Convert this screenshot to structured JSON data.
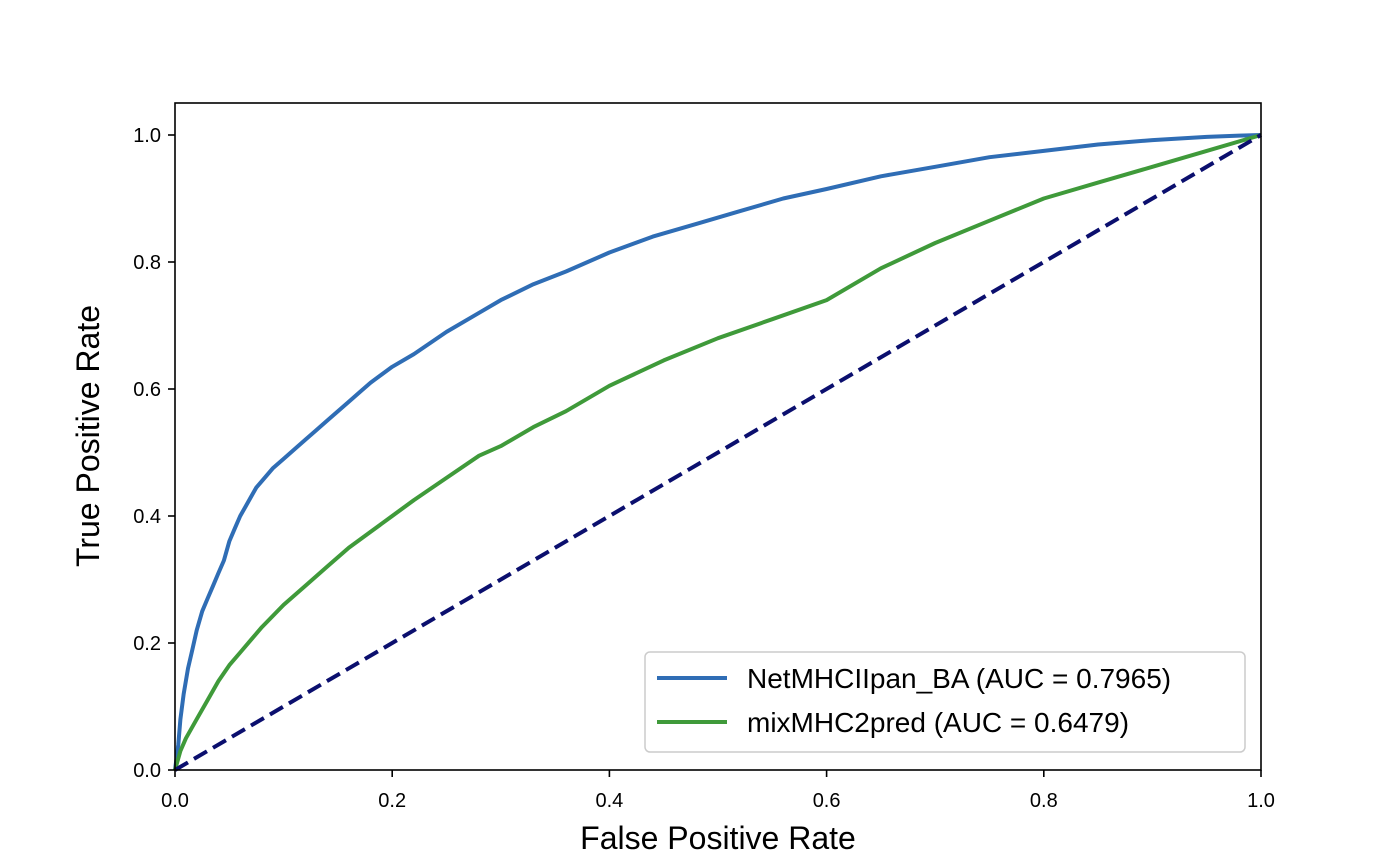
{
  "chart_data": {
    "type": "line",
    "title": "",
    "xlabel": "False Positive Rate",
    "ylabel": "True Positive Rate",
    "xlim": [
      0.0,
      1.0
    ],
    "ylim": [
      0.0,
      1.05
    ],
    "xticks": [
      "0.0",
      "0.2",
      "0.4",
      "0.6",
      "0.8",
      "1.0"
    ],
    "yticks": [
      "0.0",
      "0.2",
      "0.4",
      "0.6",
      "0.8",
      "1.0"
    ],
    "grid": false,
    "legend_position": "lower-right",
    "series": [
      {
        "name": "NetMHCIIpan_BA (AUC = 0.7965)",
        "color": "#2f6db5",
        "x": [
          0.0,
          0.003,
          0.005,
          0.008,
          0.012,
          0.016,
          0.02,
          0.025,
          0.03,
          0.035,
          0.04,
          0.045,
          0.05,
          0.055,
          0.06,
          0.065,
          0.07,
          0.075,
          0.08,
          0.09,
          0.1,
          0.11,
          0.12,
          0.13,
          0.14,
          0.15,
          0.16,
          0.17,
          0.18,
          0.2,
          0.22,
          0.25,
          0.28,
          0.3,
          0.33,
          0.36,
          0.4,
          0.44,
          0.48,
          0.52,
          0.56,
          0.6,
          0.65,
          0.7,
          0.75,
          0.8,
          0.85,
          0.9,
          0.95,
          0.98,
          1.0
        ],
        "y": [
          0.0,
          0.04,
          0.08,
          0.12,
          0.16,
          0.19,
          0.22,
          0.25,
          0.27,
          0.29,
          0.31,
          0.33,
          0.36,
          0.38,
          0.4,
          0.415,
          0.43,
          0.445,
          0.455,
          0.475,
          0.49,
          0.505,
          0.52,
          0.535,
          0.55,
          0.565,
          0.58,
          0.595,
          0.61,
          0.635,
          0.655,
          0.69,
          0.72,
          0.74,
          0.765,
          0.785,
          0.815,
          0.84,
          0.86,
          0.88,
          0.9,
          0.915,
          0.935,
          0.95,
          0.965,
          0.975,
          0.985,
          0.992,
          0.997,
          0.999,
          1.0
        ]
      },
      {
        "name": "mixMHC2pred (AUC = 0.6479)",
        "color": "#3f9a3a",
        "x": [
          0.0,
          0.005,
          0.01,
          0.02,
          0.03,
          0.04,
          0.05,
          0.06,
          0.07,
          0.08,
          0.1,
          0.12,
          0.14,
          0.16,
          0.18,
          0.2,
          0.22,
          0.25,
          0.28,
          0.3,
          0.33,
          0.36,
          0.4,
          0.45,
          0.5,
          0.55,
          0.6,
          0.65,
          0.7,
          0.75,
          0.8,
          0.85,
          0.9,
          0.95,
          1.0
        ],
        "y": [
          0.0,
          0.03,
          0.05,
          0.08,
          0.11,
          0.14,
          0.165,
          0.185,
          0.205,
          0.225,
          0.26,
          0.29,
          0.32,
          0.35,
          0.375,
          0.4,
          0.425,
          0.46,
          0.495,
          0.51,
          0.54,
          0.565,
          0.605,
          0.645,
          0.68,
          0.71,
          0.74,
          0.79,
          0.83,
          0.865,
          0.9,
          0.925,
          0.95,
          0.975,
          1.0
        ]
      },
      {
        "name": "",
        "color": "#0b0f6e",
        "dashed": true,
        "x": [
          0.0,
          1.0
        ],
        "y": [
          0.0,
          1.0
        ]
      }
    ]
  }
}
